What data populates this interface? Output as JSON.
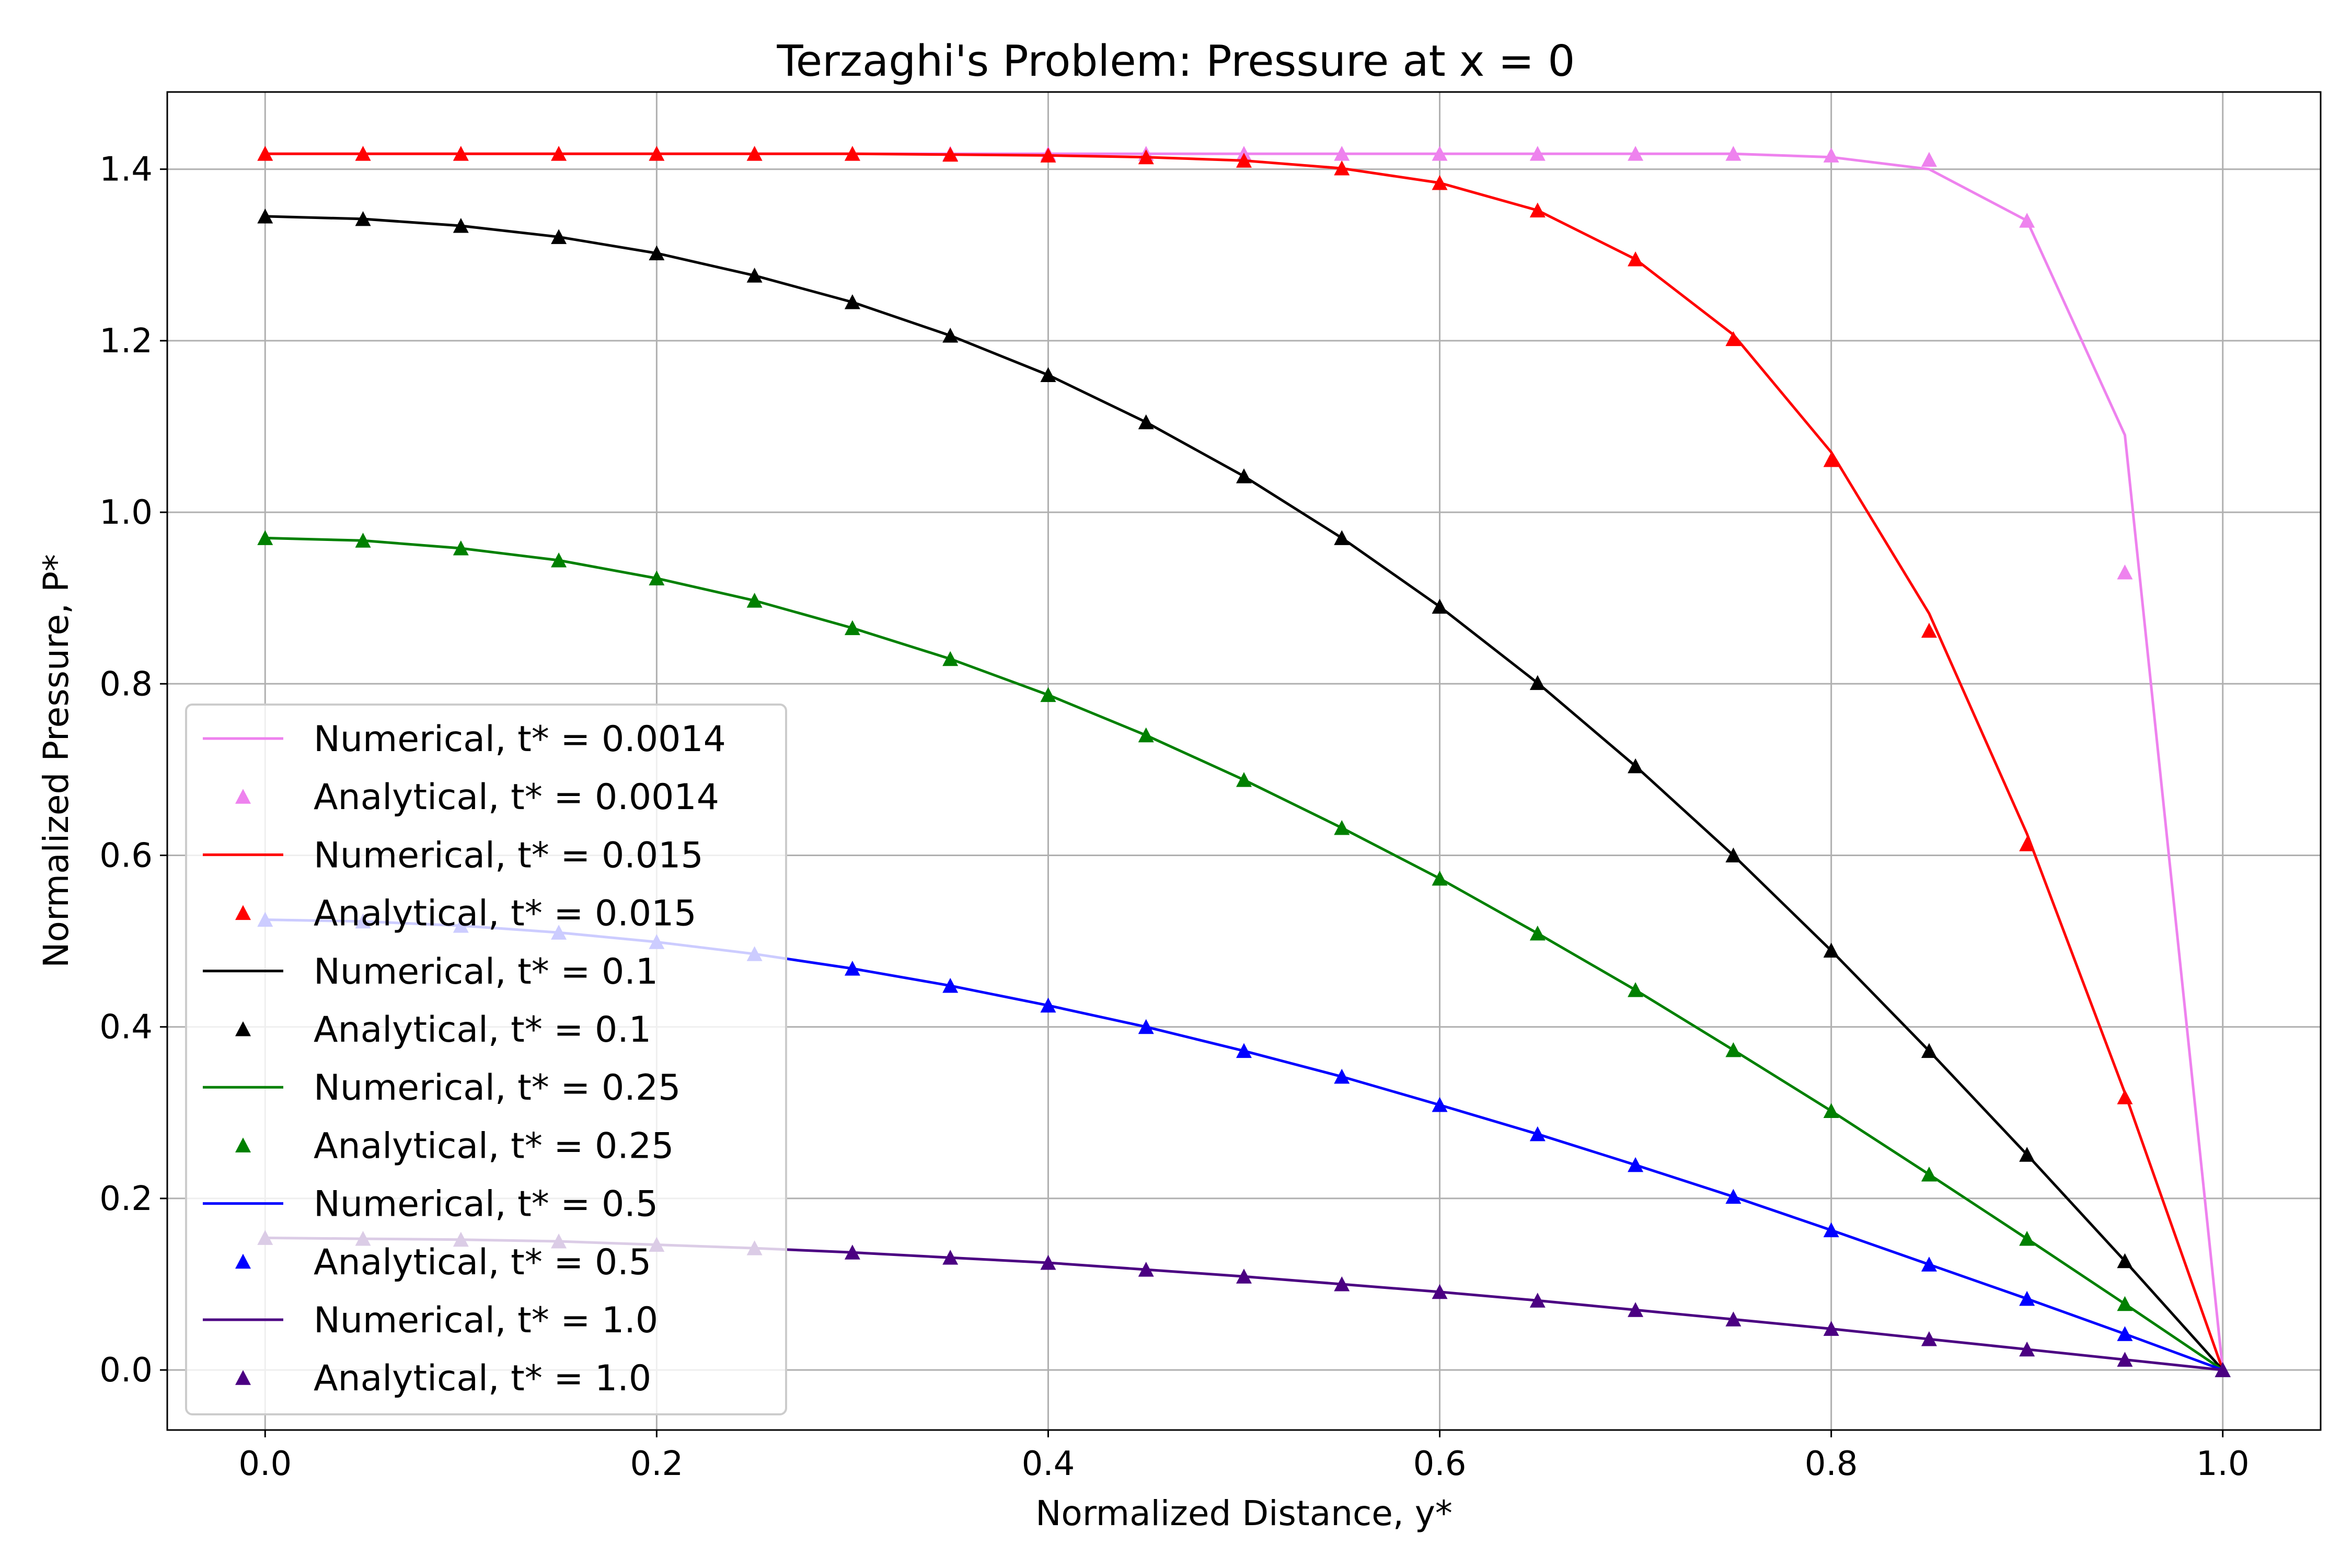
{
  "chart_data": {
    "type": "line",
    "title": "Terzaghi's Problem: Pressure at x = 0",
    "xlabel": "Normalized Distance, y*",
    "ylabel": "Normalized Pressure, P*",
    "xlim": [
      -0.05,
      1.05
    ],
    "ylim": [
      -0.07,
      1.49
    ],
    "xticks": [
      0.0,
      0.2,
      0.4,
      0.6,
      0.8,
      1.0
    ],
    "xtick_labels": [
      "0.0",
      "0.2",
      "0.4",
      "0.6",
      "0.8",
      "1.0"
    ],
    "yticks": [
      0.0,
      0.2,
      0.4,
      0.6,
      0.8,
      1.0,
      1.2,
      1.4
    ],
    "ytick_labels": [
      "0.0",
      "0.2",
      "0.4",
      "0.6",
      "0.8",
      "1.0",
      "1.2",
      "1.4"
    ],
    "grid": true,
    "legend_position": "lower-left",
    "x": [
      0.0,
      0.05,
      0.1,
      0.15,
      0.2,
      0.25,
      0.3,
      0.35,
      0.4,
      0.45,
      0.5,
      0.55,
      0.6,
      0.65,
      0.7,
      0.75,
      0.8,
      0.85,
      0.9,
      0.95,
      1.0
    ],
    "series": [
      {
        "t": "0.0014",
        "color": "#ee82ee",
        "numerical_label": "Numerical, t* = 0.0014",
        "analytical_label": "Analytical, t* = 0.0014",
        "numerical": [
          1.418,
          1.418,
          1.418,
          1.418,
          1.418,
          1.418,
          1.418,
          1.418,
          1.418,
          1.418,
          1.418,
          1.418,
          1.418,
          1.418,
          1.418,
          1.418,
          1.414,
          1.4,
          1.34,
          1.09,
          0.0
        ],
        "analytical": [
          1.418,
          1.418,
          1.418,
          1.418,
          1.418,
          1.418,
          1.418,
          1.418,
          1.418,
          1.418,
          1.418,
          1.418,
          1.418,
          1.418,
          1.418,
          1.418,
          1.416,
          1.411,
          1.34,
          0.93,
          0.0
        ]
      },
      {
        "t": "0.015",
        "color": "#ff0000",
        "numerical_label": "Numerical, t* = 0.015",
        "analytical_label": "Analytical, t* = 0.015",
        "numerical": [
          1.418,
          1.418,
          1.418,
          1.418,
          1.418,
          1.418,
          1.418,
          1.417,
          1.416,
          1.414,
          1.41,
          1.401,
          1.384,
          1.352,
          1.295,
          1.207,
          1.07,
          0.882,
          0.625,
          0.323,
          0.0
        ],
        "analytical": [
          1.418,
          1.418,
          1.418,
          1.418,
          1.418,
          1.418,
          1.418,
          1.417,
          1.416,
          1.414,
          1.41,
          1.401,
          1.384,
          1.352,
          1.295,
          1.202,
          1.061,
          0.862,
          0.613,
          0.318,
          0.0
        ]
      },
      {
        "t": "0.1",
        "color": "#000000",
        "numerical_label": "Numerical, t* = 0.1",
        "analytical_label": "Analytical, t* = 0.1",
        "numerical": [
          1.345,
          1.342,
          1.334,
          1.321,
          1.302,
          1.276,
          1.245,
          1.206,
          1.16,
          1.105,
          1.042,
          0.97,
          0.89,
          0.801,
          0.704,
          0.6,
          0.489,
          0.372,
          0.251,
          0.127,
          0.0
        ],
        "analytical": [
          1.345,
          1.342,
          1.334,
          1.321,
          1.302,
          1.276,
          1.245,
          1.206,
          1.16,
          1.105,
          1.042,
          0.97,
          0.89,
          0.801,
          0.704,
          0.6,
          0.489,
          0.372,
          0.251,
          0.127,
          0.0
        ]
      },
      {
        "t": "0.25",
        "color": "#008000",
        "numerical_label": "Numerical, t* = 0.25",
        "analytical_label": "Analytical, t* = 0.25",
        "numerical": [
          0.97,
          0.967,
          0.958,
          0.944,
          0.923,
          0.897,
          0.865,
          0.829,
          0.787,
          0.74,
          0.688,
          0.632,
          0.573,
          0.509,
          0.443,
          0.373,
          0.302,
          0.228,
          0.153,
          0.077,
          0.0
        ],
        "analytical": [
          0.97,
          0.967,
          0.958,
          0.944,
          0.923,
          0.897,
          0.865,
          0.829,
          0.787,
          0.74,
          0.688,
          0.632,
          0.573,
          0.509,
          0.443,
          0.373,
          0.302,
          0.228,
          0.153,
          0.077,
          0.0
        ]
      },
      {
        "t": "0.5",
        "color": "#0000ff",
        "numerical_label": "Numerical, t* = 0.5",
        "analytical_label": "Analytical, t* = 0.5",
        "numerical": [
          0.525,
          0.523,
          0.518,
          0.51,
          0.499,
          0.485,
          0.468,
          0.448,
          0.425,
          0.4,
          0.372,
          0.342,
          0.309,
          0.275,
          0.239,
          0.202,
          0.163,
          0.123,
          0.083,
          0.042,
          0.0
        ],
        "analytical": [
          0.525,
          0.523,
          0.518,
          0.51,
          0.499,
          0.485,
          0.468,
          0.448,
          0.425,
          0.4,
          0.372,
          0.342,
          0.309,
          0.275,
          0.239,
          0.202,
          0.163,
          0.123,
          0.083,
          0.042,
          0.0
        ]
      },
      {
        "t": "1.0",
        "color": "#4b0082",
        "numerical_label": "Numerical, t* = 1.0",
        "analytical_label": "Analytical, t* = 1.0",
        "numerical": [
          0.154,
          0.153,
          0.152,
          0.15,
          0.146,
          0.142,
          0.137,
          0.131,
          0.125,
          0.117,
          0.109,
          0.1,
          0.091,
          0.081,
          0.07,
          0.059,
          0.048,
          0.036,
          0.024,
          0.012,
          0.0
        ],
        "analytical": [
          0.154,
          0.153,
          0.152,
          0.15,
          0.146,
          0.142,
          0.137,
          0.131,
          0.125,
          0.117,
          0.109,
          0.1,
          0.091,
          0.081,
          0.07,
          0.059,
          0.048,
          0.036,
          0.024,
          0.012,
          0.0
        ]
      }
    ]
  }
}
